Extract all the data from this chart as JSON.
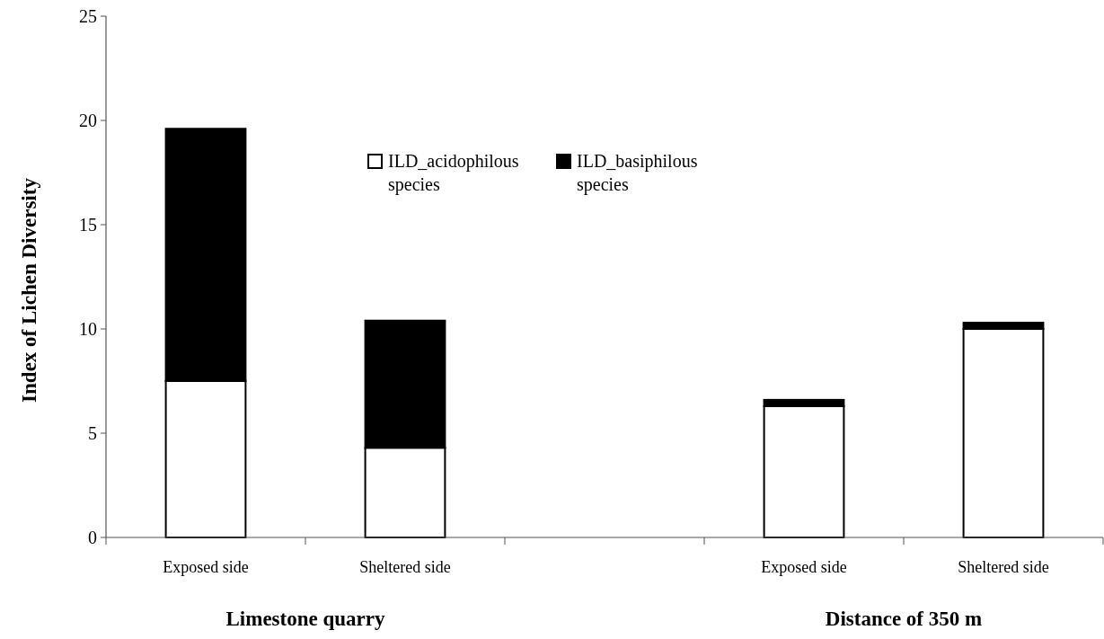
{
  "chart_data": {
    "type": "bar",
    "stacked": true,
    "ylabel": "Index of Lichen Diversity",
    "categories": [
      "Exposed side",
      "Sheltered side",
      null,
      "Exposed side",
      "Sheltered side"
    ],
    "series": [
      {
        "name": "ILD_acidophilous species",
        "color": "#ffffff",
        "values": [
          7.5,
          4.3,
          null,
          6.3,
          10.0
        ]
      },
      {
        "name": "ILD_basiphilous species",
        "color": "#000000",
        "values": [
          12.1,
          6.1,
          null,
          0.3,
          0.3
        ]
      }
    ],
    "ylim": [
      0,
      25
    ],
    "yticks": [
      0,
      5,
      10,
      15,
      20,
      25
    ],
    "legend": "top",
    "grid": false,
    "annotations": [
      "Limestone quarry",
      "Distance of 350 m"
    ]
  }
}
